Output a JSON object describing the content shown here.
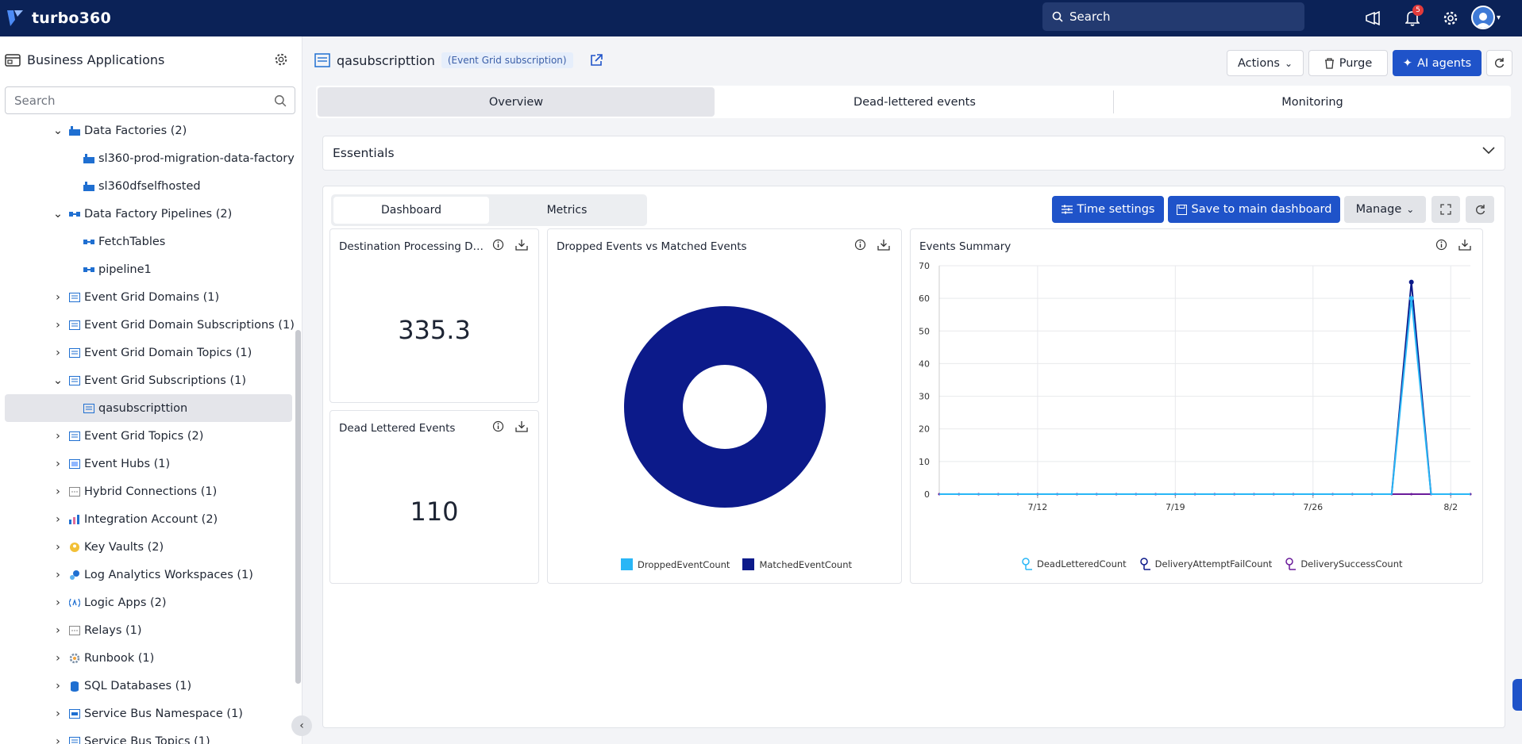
{
  "topbar": {
    "brand": "turbo360",
    "search_placeholder": "Search",
    "notifications_count": "5",
    "icons": [
      "megaphone-icon",
      "bell-icon",
      "gear-icon",
      "user-avatar-icon"
    ]
  },
  "sidebar": {
    "title": "Business Applications",
    "search_placeholder": "Search",
    "items": [
      {
        "label": "Data Factories (2)",
        "expanded": true,
        "icon": "data-factory-icon"
      },
      {
        "label": "sl360-prod-migration-data-factory",
        "icon": "data-factory-icon"
      },
      {
        "label": "sl360dfselfhosted",
        "icon": "data-factory-icon"
      },
      {
        "label": "Data Factory Pipelines (2)",
        "expanded": true,
        "icon": "pipeline-icon"
      },
      {
        "label": "FetchTables",
        "icon": "pipeline-icon"
      },
      {
        "label": "pipeline1",
        "icon": "pipeline-icon"
      },
      {
        "label": "Event Grid Domains (1)",
        "icon": "event-grid-icon"
      },
      {
        "label": "Event Grid Domain Subscriptions (1)",
        "icon": "event-grid-icon"
      },
      {
        "label": "Event Grid Domain Topics (1)",
        "icon": "event-grid-icon"
      },
      {
        "label": "Event Grid Subscriptions (1)",
        "expanded": true,
        "icon": "event-grid-icon"
      },
      {
        "label": "qasubscripttion",
        "selected": true,
        "icon": "event-grid-icon"
      },
      {
        "label": "Event Grid Topics (2)",
        "icon": "event-grid-icon"
      },
      {
        "label": "Event Hubs (1)",
        "icon": "event-hub-icon"
      },
      {
        "label": "Hybrid Connections (1)",
        "icon": "hybrid-connection-icon"
      },
      {
        "label": "Integration Account (2)",
        "icon": "integration-account-icon"
      },
      {
        "label": "Key Vaults (2)",
        "icon": "key-vault-icon"
      },
      {
        "label": "Log Analytics Workspaces (1)",
        "icon": "log-analytics-icon"
      },
      {
        "label": "Logic Apps (2)",
        "icon": "logic-app-icon"
      },
      {
        "label": "Relays (1)",
        "icon": "relay-icon"
      },
      {
        "label": "Runbook (1)",
        "icon": "runbook-icon"
      },
      {
        "label": "SQL Databases (1)",
        "icon": "sql-database-icon"
      },
      {
        "label": "Service Bus Namespace (1)",
        "icon": "service-bus-icon"
      },
      {
        "label": "Service Bus Topics (1)",
        "icon": "service-bus-icon"
      }
    ]
  },
  "resource": {
    "name": "qasubscripttion",
    "type": "(Event Grid subscription)"
  },
  "header_buttons": {
    "actions": "Actions",
    "purge": "Purge",
    "ai_agents": "AI agents"
  },
  "tabs": [
    "Overview",
    "Dead-lettered events",
    "Monitoring"
  ],
  "essentials": {
    "label": "Essentials"
  },
  "dashboard": {
    "subtabs": [
      "Dashboard",
      "Metrics"
    ],
    "time_settings": "Time settings",
    "save_to_main": "Save to main dashboard",
    "manage": "Manage"
  },
  "cards": {
    "processing": {
      "title": "Destination Processing Dur...",
      "value": "335.3"
    },
    "dead_lettered": {
      "title": "Dead Lettered Events",
      "value": "110"
    },
    "dropped_vs_matched": {
      "title": "Dropped Events vs Matched Events"
    },
    "events_summary": {
      "title": "Events Summary"
    }
  },
  "chart_data": [
    {
      "type": "pie",
      "title": "Dropped Events vs Matched Events",
      "donut": true,
      "slices": [
        {
          "label": "DroppedEventCount",
          "value": 0,
          "color": "#29b6f6"
        },
        {
          "label": "MatchedEventCount",
          "value": 100,
          "color": "#0c1a8a"
        }
      ]
    },
    {
      "type": "line",
      "title": "Events Summary",
      "ylim": [
        0,
        70
      ],
      "yticks": [
        0,
        10,
        20,
        30,
        40,
        50,
        60,
        70
      ],
      "x_range": [
        "7/7",
        "8/3"
      ],
      "xticks": [
        "7/12",
        "7/19",
        "7/26",
        "8/2"
      ],
      "x": [
        "7/7",
        "7/8",
        "7/9",
        "7/10",
        "7/11",
        "7/12",
        "7/13",
        "7/14",
        "7/15",
        "7/16",
        "7/17",
        "7/18",
        "7/19",
        "7/20",
        "7/21",
        "7/22",
        "7/23",
        "7/24",
        "7/25",
        "7/26",
        "7/27",
        "7/28",
        "7/29",
        "7/30",
        "7/31",
        "8/1",
        "8/2",
        "8/3"
      ],
      "series": [
        {
          "name": "DeadLetteredCount",
          "color": "#29b6f6",
          "values": [
            0,
            0,
            0,
            0,
            0,
            0,
            0,
            0,
            0,
            0,
            0,
            0,
            0,
            0,
            0,
            0,
            0,
            0,
            0,
            0,
            0,
            0,
            0,
            0,
            60,
            0,
            0,
            0
          ]
        },
        {
          "name": "DeliveryAttemptFailCount",
          "color": "#0c1a8a",
          "values": [
            0,
            0,
            0,
            0,
            0,
            0,
            0,
            0,
            0,
            0,
            0,
            0,
            0,
            0,
            0,
            0,
            0,
            0,
            0,
            0,
            0,
            0,
            0,
            0,
            65,
            0,
            0,
            0
          ]
        },
        {
          "name": "DeliverySuccessCount",
          "color": "#6a1b9a",
          "values": [
            0,
            0,
            0,
            0,
            0,
            0,
            0,
            0,
            0,
            0,
            0,
            0,
            0,
            0,
            0,
            0,
            0,
            0,
            0,
            0,
            0,
            0,
            0,
            0,
            0,
            0,
            0,
            0
          ]
        }
      ]
    }
  ]
}
